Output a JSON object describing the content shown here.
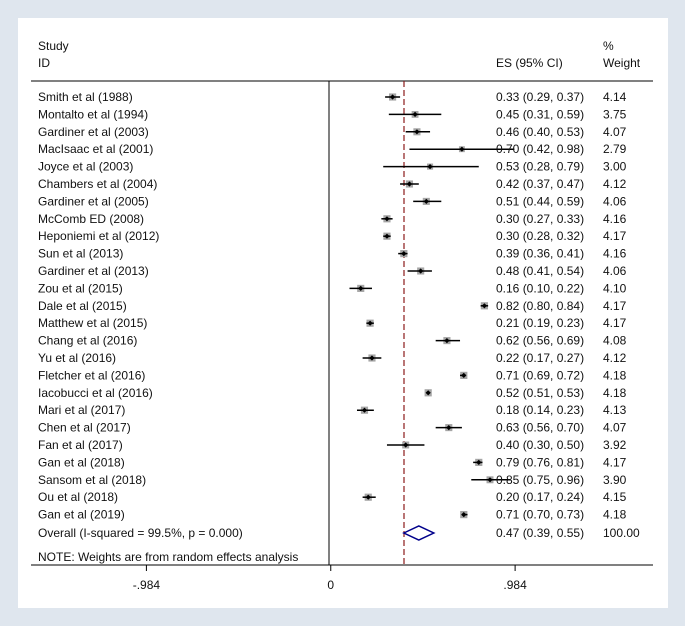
{
  "chart_data": {
    "type": "forest",
    "header": {
      "study_line1": "Study",
      "study_line2": "ID",
      "es_label": "ES (95% CI)",
      "weight_line1": "%",
      "weight_line2": "Weight"
    },
    "studies": [
      {
        "name": "Smith et al (1988)",
        "es": 0.33,
        "lo": 0.29,
        "hi": 0.37,
        "ci_text": "0.33 (0.29, 0.37)",
        "weight": 4.14,
        "weight_text": "4.14"
      },
      {
        "name": "Montalto et al (1994)",
        "es": 0.45,
        "lo": 0.31,
        "hi": 0.59,
        "ci_text": "0.45 (0.31, 0.59)",
        "weight": 3.75,
        "weight_text": "3.75"
      },
      {
        "name": "Gardiner et al (2003)",
        "es": 0.46,
        "lo": 0.4,
        "hi": 0.53,
        "ci_text": "0.46 (0.40, 0.53)",
        "weight": 4.07,
        "weight_text": "4.07"
      },
      {
        "name": "MacIsaac et al (2001)",
        "es": 0.7,
        "lo": 0.42,
        "hi": 0.98,
        "ci_text": "0.70 (0.42, 0.98)",
        "weight": 2.79,
        "weight_text": "2.79"
      },
      {
        "name": "Joyce et al (2003)",
        "es": 0.53,
        "lo": 0.28,
        "hi": 0.79,
        "ci_text": "0.53 (0.28, 0.79)",
        "weight": 3.0,
        "weight_text": "3.00"
      },
      {
        "name": "Chambers et al (2004)",
        "es": 0.42,
        "lo": 0.37,
        "hi": 0.47,
        "ci_text": "0.42 (0.37, 0.47)",
        "weight": 4.12,
        "weight_text": "4.12"
      },
      {
        "name": "Gardiner et al (2005)",
        "es": 0.51,
        "lo": 0.44,
        "hi": 0.59,
        "ci_text": "0.51 (0.44, 0.59)",
        "weight": 4.06,
        "weight_text": "4.06"
      },
      {
        "name": "McComb ED (2008)",
        "es": 0.3,
        "lo": 0.27,
        "hi": 0.33,
        "ci_text": "0.30 (0.27, 0.33)",
        "weight": 4.16,
        "weight_text": "4.16"
      },
      {
        "name": "Heponiemi et al (2012)",
        "es": 0.3,
        "lo": 0.28,
        "hi": 0.32,
        "ci_text": "0.30 (0.28, 0.32)",
        "weight": 4.17,
        "weight_text": "4.17"
      },
      {
        "name": "Sun et al (2013)",
        "es": 0.39,
        "lo": 0.36,
        "hi": 0.41,
        "ci_text": "0.39 (0.36, 0.41)",
        "weight": 4.16,
        "weight_text": "4.16"
      },
      {
        "name": "Gardiner et al (2013)",
        "es": 0.48,
        "lo": 0.41,
        "hi": 0.54,
        "ci_text": "0.48 (0.41, 0.54)",
        "weight": 4.06,
        "weight_text": "4.06"
      },
      {
        "name": "Zou et al (2015)",
        "es": 0.16,
        "lo": 0.1,
        "hi": 0.22,
        "ci_text": "0.16 (0.10, 0.22)",
        "weight": 4.1,
        "weight_text": "4.10"
      },
      {
        "name": "Dale et al (2015)",
        "es": 0.82,
        "lo": 0.8,
        "hi": 0.84,
        "ci_text": "0.82 (0.80, 0.84)",
        "weight": 4.17,
        "weight_text": "4.17"
      },
      {
        "name": "Matthew et al (2015)",
        "es": 0.21,
        "lo": 0.19,
        "hi": 0.23,
        "ci_text": "0.21 (0.19, 0.23)",
        "weight": 4.17,
        "weight_text": "4.17"
      },
      {
        "name": "Chang et al (2016)",
        "es": 0.62,
        "lo": 0.56,
        "hi": 0.69,
        "ci_text": "0.62 (0.56, 0.69)",
        "weight": 4.08,
        "weight_text": "4.08"
      },
      {
        "name": "Yu et al (2016)",
        "es": 0.22,
        "lo": 0.17,
        "hi": 0.27,
        "ci_text": "0.22 (0.17, 0.27)",
        "weight": 4.12,
        "weight_text": "4.12"
      },
      {
        "name": "Fletcher et al (2016)",
        "es": 0.71,
        "lo": 0.69,
        "hi": 0.72,
        "ci_text": "0.71 (0.69, 0.72)",
        "weight": 4.18,
        "weight_text": "4.18"
      },
      {
        "name": "Iacobucci et al (2016)",
        "es": 0.52,
        "lo": 0.51,
        "hi": 0.53,
        "ci_text": "0.52 (0.51, 0.53)",
        "weight": 4.18,
        "weight_text": "4.18"
      },
      {
        "name": "Mari et al (2017)",
        "es": 0.18,
        "lo": 0.14,
        "hi": 0.23,
        "ci_text": "0.18 (0.14, 0.23)",
        "weight": 4.13,
        "weight_text": "4.13"
      },
      {
        "name": "Chen et al (2017)",
        "es": 0.63,
        "lo": 0.56,
        "hi": 0.7,
        "ci_text": "0.63 (0.56, 0.70)",
        "weight": 4.07,
        "weight_text": "4.07"
      },
      {
        "name": "Fan et al (2017)",
        "es": 0.4,
        "lo": 0.3,
        "hi": 0.5,
        "ci_text": "0.40 (0.30, 0.50)",
        "weight": 3.92,
        "weight_text": "3.92"
      },
      {
        "name": "Gan et al (2018)",
        "es": 0.79,
        "lo": 0.76,
        "hi": 0.81,
        "ci_text": "0.79 (0.76, 0.81)",
        "weight": 4.17,
        "weight_text": "4.17"
      },
      {
        "name": "Sansom et al (2018)",
        "es": 0.85,
        "lo": 0.75,
        "hi": 0.96,
        "ci_text": "0.85 (0.75, 0.96)",
        "weight": 3.9,
        "weight_text": "3.90"
      },
      {
        "name": "Ou et al (2018)",
        "es": 0.2,
        "lo": 0.17,
        "hi": 0.24,
        "ci_text": "0.20 (0.17, 0.24)",
        "weight": 4.15,
        "weight_text": "4.15"
      },
      {
        "name": "Gan et al (2019)",
        "es": 0.71,
        "lo": 0.7,
        "hi": 0.73,
        "ci_text": "0.71 (0.70, 0.73)",
        "weight": 4.18,
        "weight_text": "4.18"
      }
    ],
    "overall": {
      "label": "Overall  (I-squared = 99.5%, p = 0.000)",
      "es": 0.47,
      "lo": 0.39,
      "hi": 0.55,
      "ci_text": "0.47 (0.39, 0.55)",
      "weight_text": "100.00"
    },
    "note": "NOTE: Weights are from random effects analysis",
    "x_axis": {
      "range": [
        -1.6,
        1.72
      ],
      "ticks": [
        {
          "value": -0.984,
          "label": "-.984"
        },
        {
          "value": 0,
          "label": "0"
        },
        {
          "value": 0.984,
          "label": ".984"
        }
      ]
    },
    "colors": {
      "background": "#dfe6ee",
      "panel": "#ffffff",
      "box": "#a6a6a6",
      "ci_line": "#000000",
      "point": "#000000",
      "reference": "#8b1a1a",
      "diamond": "#00008b"
    }
  }
}
